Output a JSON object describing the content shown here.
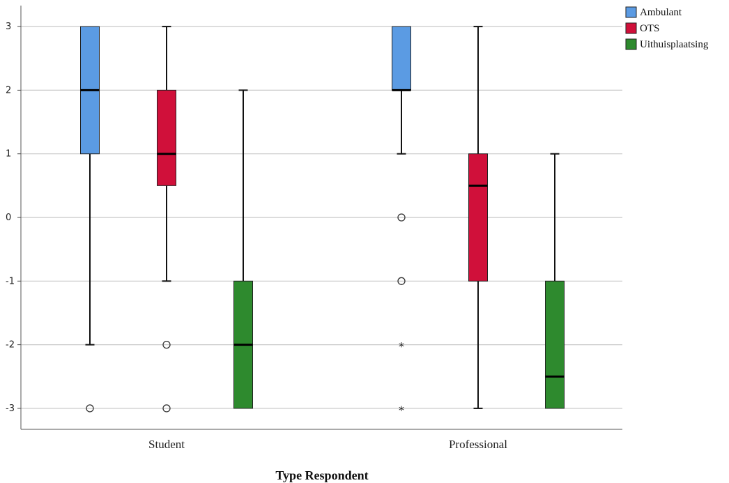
{
  "chart_data": {
    "type": "boxplot",
    "xlabel": "Type Respondent",
    "ylabel": "",
    "ylim": [
      -3.3,
      3.3
    ],
    "yticks": [
      3,
      2,
      1,
      0,
      -1,
      -2,
      -3
    ],
    "grid": true,
    "legend_position": "top-right",
    "categories": [
      "Student",
      "Professional"
    ],
    "series": [
      {
        "name": "Ambulant",
        "color": "#5b9be3",
        "boxes": [
          {
            "whisker_low": -2,
            "q1": 1,
            "median": 2,
            "q3": 3,
            "whisker_high": 3,
            "outliers": [
              {
                "value": -3,
                "marker": "circle"
              }
            ]
          },
          {
            "whisker_low": 1,
            "q1": 2,
            "median": 2,
            "q3": 3,
            "whisker_high": 3,
            "outliers": [
              {
                "value": 0,
                "marker": "circle"
              },
              {
                "value": -1,
                "marker": "circle"
              },
              {
                "value": -2,
                "marker": "star"
              },
              {
                "value": -3,
                "marker": "star"
              }
            ]
          }
        ]
      },
      {
        "name": "OTS",
        "color": "#d0103a",
        "boxes": [
          {
            "whisker_low": -1,
            "q1": 0.5,
            "median": 1,
            "q3": 2,
            "whisker_high": 3,
            "outliers": [
              {
                "value": -2,
                "marker": "circle"
              },
              {
                "value": -3,
                "marker": "circle"
              }
            ]
          },
          {
            "whisker_low": -3,
            "q1": -1,
            "median": 0.5,
            "q3": 1,
            "whisker_high": 3,
            "outliers": []
          }
        ]
      },
      {
        "name": "Uithuisplaatsing",
        "color": "#2e8a2e",
        "boxes": [
          {
            "whisker_low": -3,
            "q1": -3,
            "median": -2,
            "q3": -1,
            "whisker_high": 2,
            "outliers": []
          },
          {
            "whisker_low": -3,
            "q1": -3,
            "median": -2.5,
            "q3": -1,
            "whisker_high": 1,
            "outliers": []
          }
        ]
      }
    ]
  }
}
